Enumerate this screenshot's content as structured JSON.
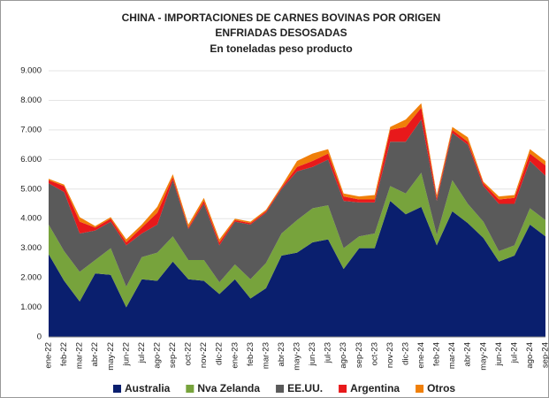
{
  "chart_data": {
    "type": "stacked_area",
    "title": "CHINA - IMPORTACIONES DE CARNES BOVINAS POR ORIGEN",
    "subtitle": "ENFRIADAS DESOSADAS",
    "unit_label": "En toneladas peso producto",
    "categories": [
      "ene-22",
      "feb-22",
      "mar-22",
      "abr-22",
      "may-22",
      "jun-22",
      "jul-22",
      "ago-22",
      "sep-22",
      "oct-22",
      "nov-22",
      "dic-22",
      "ene-23",
      "feb-23",
      "mar-23",
      "abr-23",
      "may-23",
      "jun-23",
      "jul-23",
      "ago-23",
      "sep-23",
      "oct-23",
      "nov-23",
      "dic-23",
      "ene-24",
      "feb-24",
      "mar-24",
      "abr-24",
      "may-24",
      "jun-24",
      "jul-24",
      "ago-24",
      "sep-24"
    ],
    "series": [
      {
        "name": "Australia",
        "color": "#0a1f6e",
        "values": [
          2800,
          1900,
          1200,
          2150,
          2100,
          1000,
          1950,
          1900,
          2550,
          1950,
          1900,
          1450,
          1950,
          1300,
          1650,
          2750,
          2850,
          3200,
          3300,
          2300,
          3000,
          3000,
          4600,
          4150,
          4400,
          3100,
          4250,
          3850,
          3350,
          2550,
          2750,
          3800,
          3400
        ]
      },
      {
        "name": "Nva Zelanda",
        "color": "#77a33c",
        "values": [
          1000,
          1000,
          1000,
          450,
          900,
          700,
          750,
          950,
          850,
          650,
          700,
          400,
          500,
          650,
          850,
          750,
          1100,
          1150,
          1150,
          700,
          400,
          500,
          500,
          700,
          1150,
          350,
          1050,
          650,
          550,
          350,
          350,
          550,
          550
        ]
      },
      {
        "name": "EE.UU.",
        "color": "#5a5a5a",
        "values": [
          1400,
          2000,
          1300,
          1000,
          900,
          1400,
          800,
          950,
          1900,
          1050,
          1900,
          1250,
          1450,
          1850,
          1700,
          1500,
          1650,
          1400,
          1550,
          1600,
          1150,
          1050,
          1500,
          1750,
          1800,
          1150,
          1600,
          2000,
          1200,
          1600,
          1400,
          1600,
          1500
        ]
      },
      {
        "name": "Argentina",
        "color": "#e8191b",
        "values": [
          100,
          200,
          400,
          100,
          100,
          100,
          200,
          400,
          100,
          50,
          100,
          100,
          50,
          50,
          50,
          50,
          150,
          200,
          200,
          150,
          100,
          100,
          400,
          500,
          400,
          100,
          100,
          100,
          100,
          150,
          200,
          250,
          350
        ]
      },
      {
        "name": "Otros",
        "color": "#f07f09",
        "values": [
          50,
          50,
          150,
          50,
          50,
          100,
          100,
          200,
          100,
          100,
          100,
          100,
          50,
          50,
          50,
          50,
          200,
          250,
          150,
          100,
          100,
          150,
          100,
          250,
          150,
          100,
          100,
          150,
          50,
          100,
          100,
          150,
          150
        ]
      }
    ],
    "ylim": [
      0,
      9000
    ],
    "yticks": [
      0,
      {
        "value": 1000,
        "label": "1.000"
      },
      {
        "value": 2000,
        "label": "2.000"
      },
      {
        "value": 3000,
        "label": "3.000"
      },
      {
        "value": 4000,
        "label": "4.000"
      },
      {
        "value": 5000,
        "label": "5.000"
      },
      {
        "value": 6000,
        "label": "6.000"
      },
      {
        "value": 7000,
        "label": "7.000"
      },
      {
        "value": 8000,
        "label": "8.000"
      },
      {
        "value": 9000,
        "label": "9.000"
      }
    ],
    "grid": true,
    "legend": "bottom"
  }
}
